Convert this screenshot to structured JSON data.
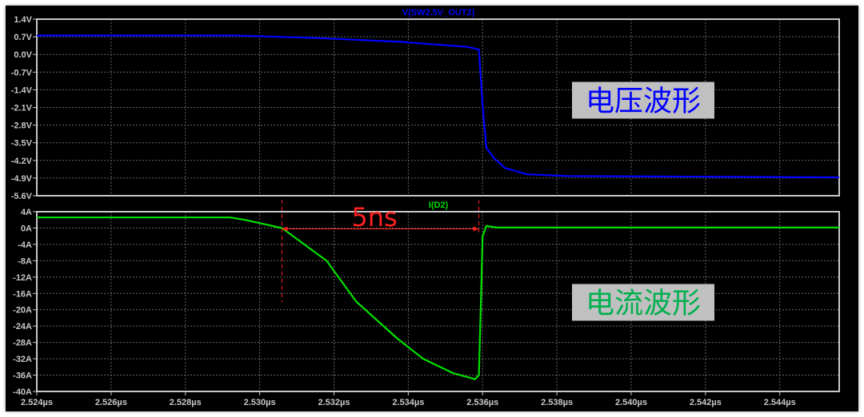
{
  "chart_data": [
    {
      "type": "line",
      "trace_label": "V(SW2.5V_OUT2)",
      "annotation": "电压波形",
      "color": "#0000ff",
      "x_unit": "µs",
      "xlim": [
        2.524,
        2.5456
      ],
      "ylim": [
        -5.6,
        1.4
      ],
      "yticks": [
        "1.4V",
        "0.7V",
        "0.0V",
        "-0.7V",
        "-1.4V",
        "-2.1V",
        "-2.8V",
        "-3.5V",
        "-4.2V",
        "-4.9V",
        "-5.6V"
      ],
      "grid": true,
      "x": [
        2.524,
        2.5294,
        2.5316,
        2.5338,
        2.5356,
        2.5359,
        2.536,
        2.5361,
        2.5363,
        2.5366,
        2.5372,
        2.5383,
        2.5456
      ],
      "y": [
        0.75,
        0.75,
        0.65,
        0.5,
        0.3,
        0.2,
        -2.0,
        -3.7,
        -4.1,
        -4.5,
        -4.75,
        -4.82,
        -4.87
      ]
    },
    {
      "type": "line",
      "trace_label": "I(D2)",
      "annotation": "电流波形",
      "color": "#00e000",
      "x_unit": "µs",
      "xlim": [
        2.524,
        2.5456
      ],
      "ylim": [
        -40,
        4
      ],
      "yticks": [
        "4A",
        "0A",
        "-4A",
        "-8A",
        "-12A",
        "-16A",
        "-20A",
        "-24A",
        "-28A",
        "-32A",
        "-36A",
        "-40A"
      ],
      "xticks": [
        "2.524µs",
        "2.526µs",
        "2.528µs",
        "2.530µs",
        "2.532µs",
        "2.534µs",
        "2.536µs",
        "2.538µs",
        "2.540µs",
        "2.542µs",
        "2.544µs"
      ],
      "grid": true,
      "x": [
        2.524,
        2.5292,
        2.5296,
        2.5301,
        2.5306,
        2.5318,
        2.5326,
        2.5337,
        2.5344,
        2.5352,
        2.5358,
        2.5359,
        2.53595,
        2.536,
        2.5361,
        2.5364,
        2.5456
      ],
      "y": [
        2.6,
        2.6,
        2.0,
        1.0,
        0,
        -8,
        -18,
        -27,
        -32,
        -35.5,
        -37,
        -36,
        -20,
        -2,
        0.5,
        0.1,
        0.1
      ],
      "measurement": {
        "label": "5ns",
        "from": 2.5306,
        "to": 2.5359,
        "color": "#ff2020"
      }
    }
  ]
}
